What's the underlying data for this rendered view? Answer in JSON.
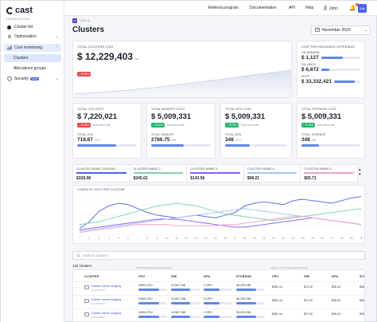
{
  "app": {
    "logo": "cast",
    "org_label": "ORGANIZATION"
  },
  "sidebar": {
    "items": [
      {
        "label": "Cluster list",
        "icon": "dot-icon"
      },
      {
        "label": "Optimization",
        "icon": "gear-icon",
        "chevron": "⌄"
      },
      {
        "label": "Cost monitoring",
        "icon": "chart-icon",
        "chevron": "⌃"
      },
      {
        "label": "Clusters"
      },
      {
        "label": "Allocations groups"
      },
      {
        "label": "Security",
        "icon": "shield-icon",
        "badge": "NEW",
        "chevron": "⌄"
      }
    ]
  },
  "topbar": {
    "links": [
      "Referral program",
      "Documentation",
      "API",
      "Help"
    ],
    "user": "John",
    "notif_count": "5",
    "avatar": "CA"
  },
  "breadcrumb": {
    "icon_text": "CA",
    "text": "CAST AI"
  },
  "page": {
    "title": "Clusters",
    "period": "November 2023"
  },
  "total_cost": {
    "label": "TOTAL CLUSTERS COST",
    "value": "$ 12,229,403",
    "unit": "/mo",
    "change": "↓ 18.58%"
  },
  "resource_offering": {
    "label": "COST PER RESOURCE OFFERINGS",
    "items": [
      {
        "label": "ON-DEMAND",
        "value": "$ 1,127",
        "fill": 0.55
      },
      {
        "label": "FALLBACK",
        "value": "$ 6,872",
        "fill": 0.2
      },
      {
        "label": "SPOT",
        "value": "$ 33,332,421",
        "fill": 0.8
      }
    ]
  },
  "metric_cards": [
    {
      "label": "TOTAL CPU COST",
      "value": "$ 7,220,021",
      "change": "↓ 18.58%",
      "change_type": "red",
      "note": "Than last month",
      "sub_label": "TOTAL CPU",
      "sub_value": "718.87",
      "sub_unit": "CPU",
      "fill": 0.65
    },
    {
      "label": "TOTAL MEMORY COST",
      "value": "$ 5,009,331",
      "change": "↑ 15.38%",
      "change_type": "green",
      "note": "Than last month",
      "sub_label": "TOTAL MEMORY",
      "sub_value": "2786.75",
      "sub_unit": "GiB",
      "fill": 0.55
    },
    {
      "label": "TOTAL GPU COST",
      "value": "$ 5,009,331",
      "change": "↑ 15.38%",
      "change_type": "green",
      "note": "Than last month",
      "sub_label": "TOTAL GPU",
      "sub_value": "348",
      "sub_unit": "GPU",
      "fill": 0.4
    },
    {
      "label": "TOTAL STORAGE COST",
      "value": "$ 5,009,331",
      "change": "↑ 15.38%",
      "change_type": "green",
      "note": "Than last month",
      "sub_label": "TOTAL STORAGE",
      "sub_value": "348",
      "sub_unit": "GiB",
      "fill": 0.3
    }
  ],
  "cluster_strip": [
    {
      "name": "CLUSTER-NAME-STAGING",
      "value": "$328.98",
      "color": "#4a63e7"
    },
    {
      "name": "CLUSTER-NAME-2",
      "value": "$245.62",
      "color": "#7dd3a8"
    },
    {
      "name": "CLUSTER-NAME-3",
      "value": "$143.56",
      "color": "#8b5cf6"
    },
    {
      "name": "CLUSTER-NAME-4",
      "value": "$98.22",
      "color": "#9ec5f5"
    },
    {
      "name": "CLUSTER-NAME-5",
      "value": "$65.71",
      "color": "#f59ec5"
    }
  ],
  "chart_data": {
    "type": "line",
    "title": "COMPUTE COST PER CLUSTER",
    "x": [
      "1",
      "2",
      "3",
      "4",
      "5",
      "6",
      "7",
      "8",
      "9",
      "10",
      "11",
      "12",
      "13",
      "14",
      "15",
      "16",
      "17",
      "18",
      "19",
      "20",
      "21",
      "22",
      "23",
      "24",
      "25",
      "26",
      "27",
      "28",
      "29",
      "30"
    ],
    "series": [
      {
        "values": [
          5,
          10,
          18,
          22,
          24,
          23,
          20,
          17,
          15,
          14,
          13,
          14,
          15,
          14,
          13,
          15,
          17,
          22,
          24,
          25,
          24,
          23,
          26,
          27,
          26,
          25,
          24,
          26,
          28,
          29
        ],
        "color": "#4a63e7"
      },
      {
        "values": [
          8,
          9,
          10,
          12,
          14,
          16,
          18,
          20,
          22,
          23,
          24,
          23,
          22,
          20,
          18,
          16,
          15,
          14,
          13,
          12,
          11,
          12,
          13,
          14,
          15,
          16,
          17,
          18,
          19,
          20
        ],
        "color": "#7dd3a8"
      },
      {
        "values": [
          4,
          5,
          6,
          7,
          8,
          9,
          10,
          11,
          12,
          12,
          12,
          11,
          10,
          9,
          8,
          7,
          6,
          6,
          7,
          8,
          9,
          10,
          11,
          12,
          13,
          12,
          11,
          10,
          9,
          8
        ],
        "color": "#8b5cf6"
      },
      {
        "values": [
          3,
          4,
          5,
          6,
          7,
          8,
          9,
          10,
          11,
          12,
          13,
          14,
          15,
          16,
          17,
          18,
          19,
          20,
          19,
          18,
          17,
          16,
          15,
          14,
          13,
          12,
          11,
          10,
          9,
          8
        ],
        "color": "#9ec5f5"
      },
      {
        "values": [
          2,
          3,
          4,
          5,
          6,
          7,
          8,
          8,
          8,
          8,
          7,
          7,
          7,
          7,
          7,
          8,
          8,
          9,
          10,
          11,
          12,
          13,
          14,
          14,
          13,
          12,
          11,
          10,
          9,
          8
        ],
        "color": "#f59ec5"
      }
    ]
  },
  "search": {
    "placeholder": "Search clusters"
  },
  "table": {
    "count": "122 clusters",
    "group_provisioned": "PROVISIONED RESOURCES",
    "group_cost": "TOTAL COST PER RESOURCE",
    "headers": [
      "CLUSTER",
      "CPU",
      "GIB",
      "GPU",
      "STORAGE",
      "CPU",
      "GIB",
      "GPU",
      "STO"
    ],
    "rows": [
      {
        "name": "Cluster-name-staging",
        "id": "cjmpn2032027",
        "cpu": "9,894 CPU",
        "gib": "13,567 GiB",
        "gpu": "2 GPU",
        "storage": "36,235 GiB",
        "cpu_cost": "$281.14",
        "gib_cost": "$72.22",
        "gpu_cost": "$28.43",
        "sto_cost": "$38"
      },
      {
        "name": "Cluster-name-staging",
        "id": "cjmpn2032027",
        "cpu": "9,894 CPU",
        "gib": "13,567 GiB",
        "gpu": "2 GPU",
        "storage": "36,235 GiB",
        "cpu_cost": "$281.14",
        "gib_cost": "$72.22",
        "gpu_cost": "$28.43",
        "sto_cost": "$38"
      },
      {
        "name": "Cluster-name-staging",
        "id": "cjmpn2032027",
        "cpu": "9,894 CPU",
        "gib": "13,567 GiB",
        "gpu": "2 GPU",
        "storage": "36,235 GiB",
        "cpu_cost": "$281.14",
        "gib_cost": "$72.22",
        "gpu_cost": "$28.43",
        "sto_cost": "$38"
      }
    ]
  }
}
